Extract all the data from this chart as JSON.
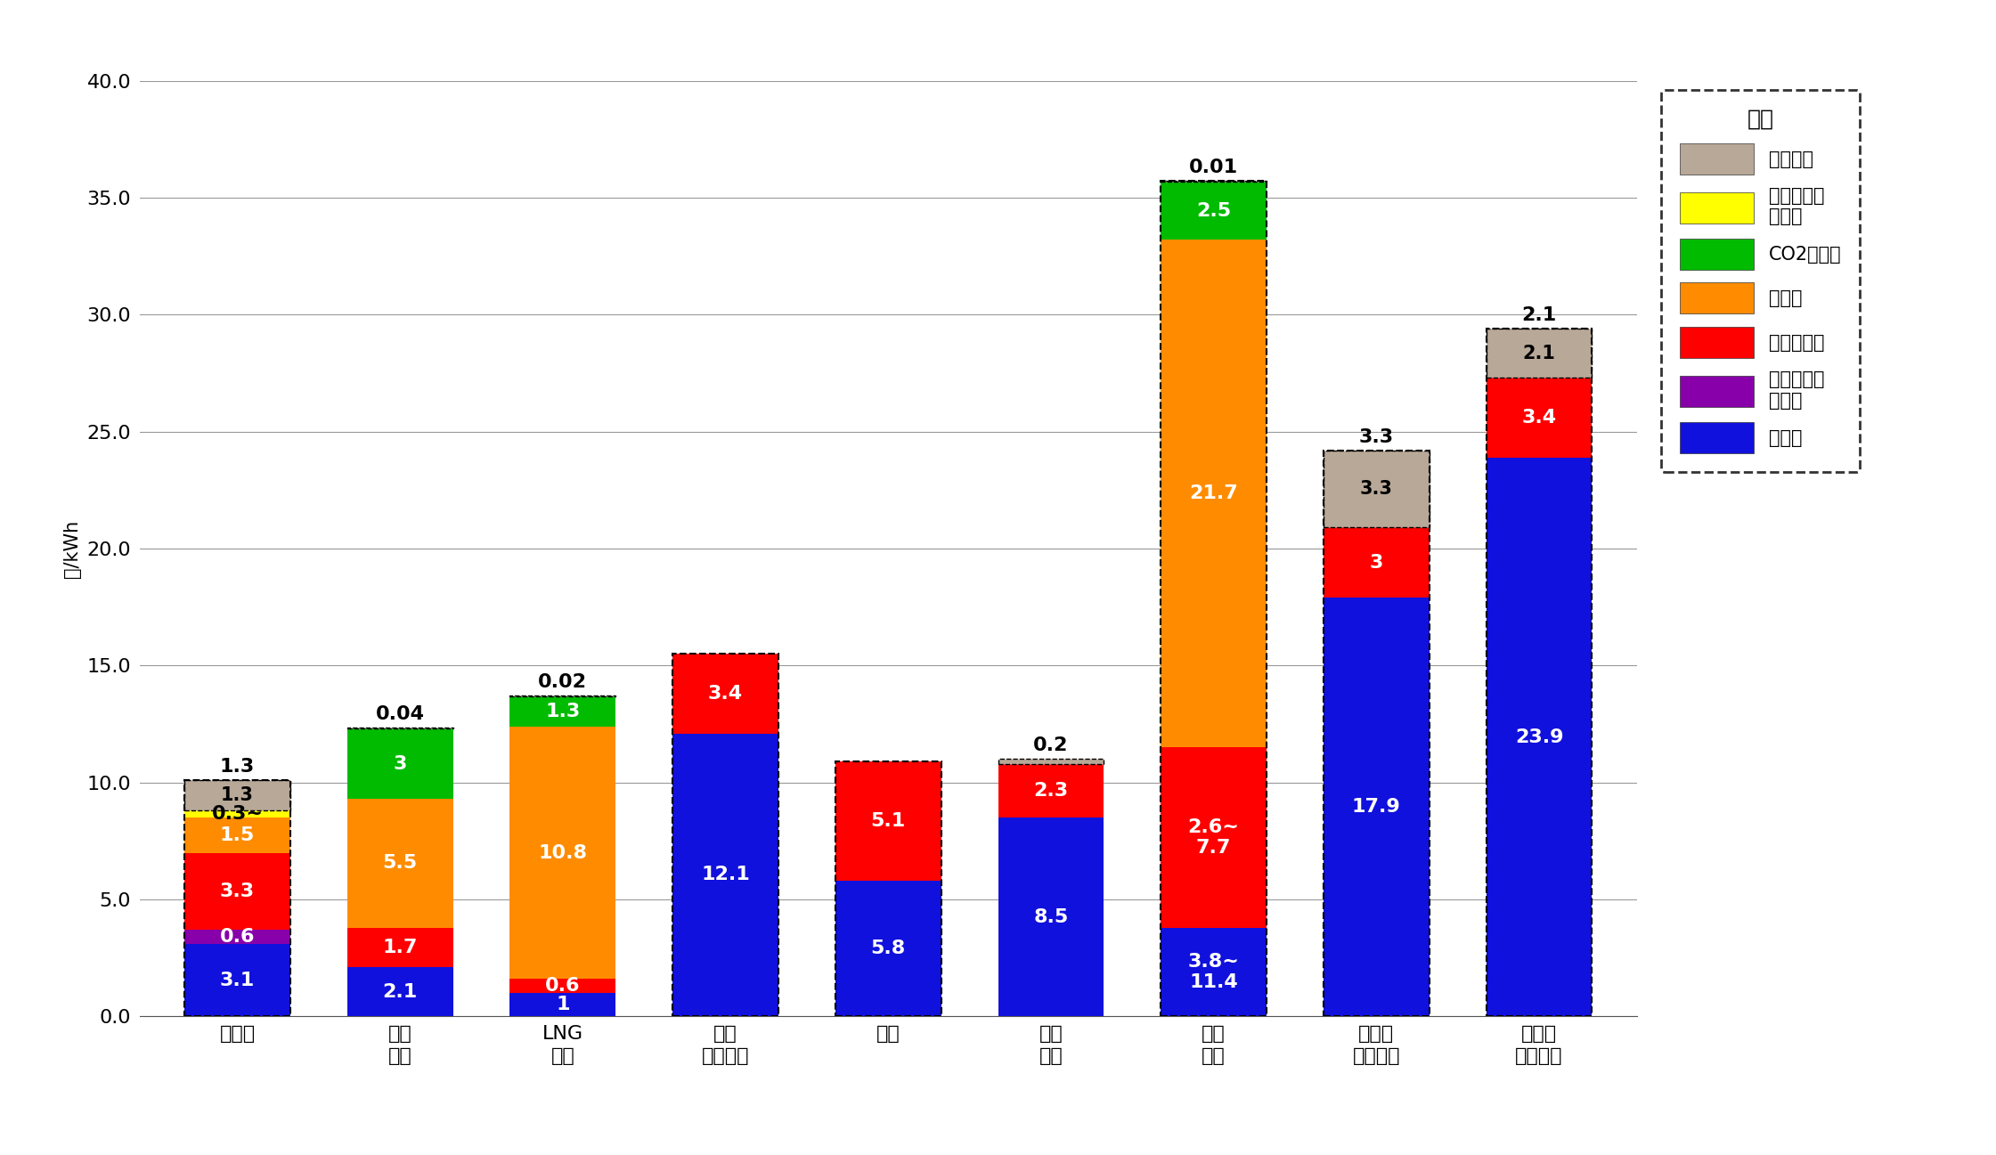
{
  "categories": [
    "原子力",
    "石炭\n火力",
    "LNG\n火力",
    "風力\n（陸上）",
    "地熱",
    "一般\n水力",
    "石油\n火力",
    "太陽光\n（メガ）",
    "太陽光\n（住宅）"
  ],
  "ylabel": "円/kWh",
  "ylim": [
    0.0,
    40.0
  ],
  "yticks": [
    0.0,
    5.0,
    10.0,
    15.0,
    20.0,
    25.0,
    30.0,
    35.0,
    40.0
  ],
  "background_color": "#ffffff",
  "grid_color": "#999999",
  "legend_title": "凡例",
  "legend_items": [
    "政策経費",
    "事故リスク\n対応費",
    "CO2対策費",
    "燃料費",
    "運転維持費",
    "追加的安全\n対策費",
    "資本費"
  ],
  "legend_colors": [
    "#b8a898",
    "#ffff00",
    "#00bb00",
    "#ff8c00",
    "#ff0000",
    "#8800aa",
    "#1111dd"
  ],
  "stack_colors": [
    "#b8a898",
    "#ffff00",
    "#00bb00",
    "#ff8c00",
    "#ff0000",
    "#8800aa",
    "#1111dd"
  ],
  "stack_names": [
    "政策経費",
    "事故リスク対応費",
    "CO2対策費",
    "燃料費",
    "運転維持費",
    "追加的安全対策費",
    "資本費"
  ],
  "data": {
    "原子力": [
      1.3,
      0.3,
      0.0,
      1.5,
      3.3,
      0.6,
      3.1
    ],
    "石炭\n火力": [
      0.04,
      0.0,
      3.0,
      5.5,
      1.7,
      0.0,
      2.1
    ],
    "LNG\n火力": [
      0.02,
      0.0,
      1.3,
      10.8,
      0.6,
      0.0,
      1.0
    ],
    "風力\n（陸上）": [
      0.0,
      0.0,
      0.0,
      0.0,
      3.4,
      0.0,
      12.1
    ],
    "地熱": [
      0.0,
      0.0,
      0.0,
      0.0,
      5.1,
      0.0,
      5.8
    ],
    "一般\n水力": [
      0.2,
      0.0,
      0.0,
      0.0,
      2.3,
      0.0,
      8.5
    ],
    "石油\n火力": [
      0.01,
      0.0,
      2.5,
      21.7,
      7.7,
      0.0,
      3.8
    ],
    "太陽光\n（メガ）": [
      3.3,
      0.0,
      0.0,
      0.0,
      3.0,
      0.0,
      17.9
    ],
    "太陽光\n（住宅）": [
      2.1,
      0.0,
      0.0,
      0.0,
      3.4,
      0.0,
      23.9
    ]
  },
  "label_color_map": {
    "資本費": "white",
    "追加的安全対策費": "white",
    "運転維持費": "white",
    "燃料費": "white",
    "CO2対策費": "white",
    "事故リスク対応費": "black",
    "政策経費": "black"
  },
  "special_labels": {
    "原子力_1": "0.3~",
    "石油\n火力_4": "2.6~\n7.7",
    "石油\n火力_6": "3.8~\n11.4"
  },
  "top_labels": {
    "原子力": "1.3",
    "石炭\n火力": "0.04",
    "LNG\n火力": "0.02",
    "風力\n（陸上）": "",
    "地熱": "",
    "一般\n水力": "0.2",
    "石油\n火力": "0.01",
    "太陽光\n（メガ）": "3.3",
    "太陽光\n（住宅）": "2.1"
  },
  "dashed_border_cats": [
    "原子力",
    "風力\n（陸上）",
    "地熱",
    "石油\n火力",
    "太陽光\n（メガ）",
    "太陽光\n（住宅）"
  ],
  "figsize": [
    22.41,
    12.97
  ],
  "dpi": 100,
  "bar_width": 0.65,
  "font_size_bar_label": 16,
  "font_size_tick": 16,
  "font_size_legend": 15,
  "font_size_ylabel": 15
}
